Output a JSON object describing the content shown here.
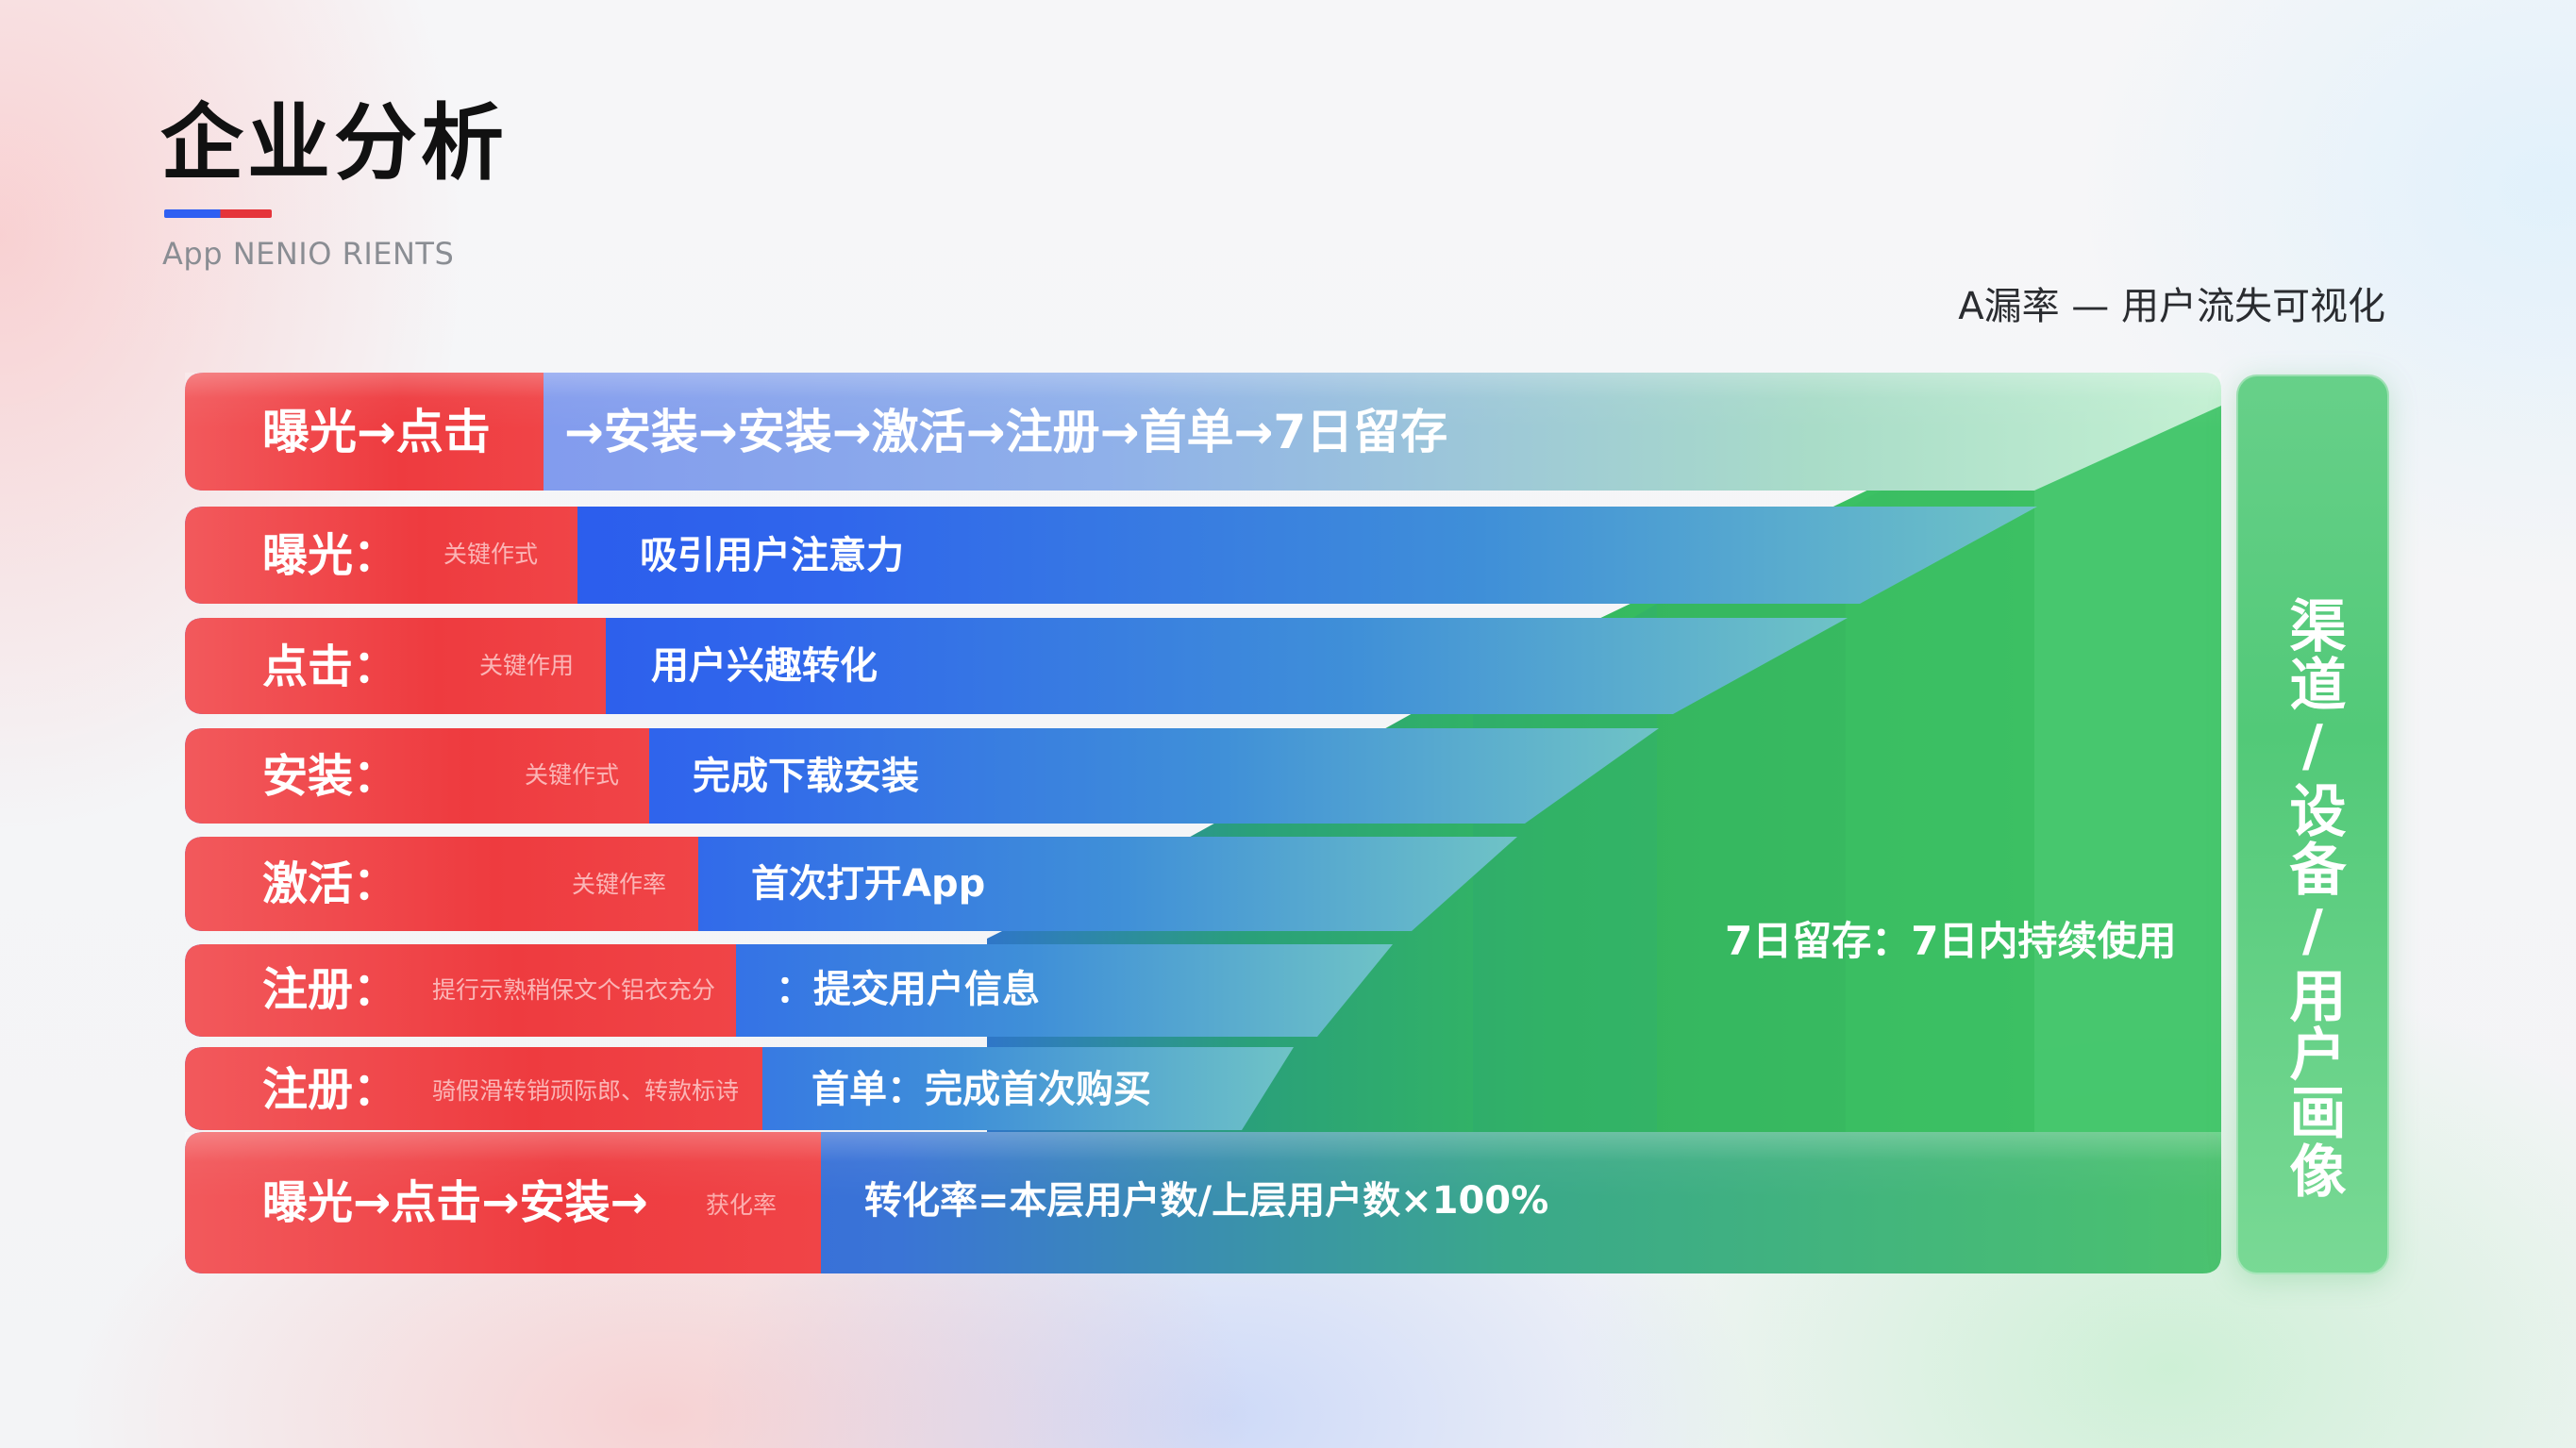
{
  "header": {
    "title": "企业分析",
    "subtitle": "App NENIO RIENTS",
    "right_caption": "A漏率 — 用户流失可视化"
  },
  "funnel": {
    "top": {
      "label_red": "曝光→点击",
      "label_blue": "→安装→安装→激活→注册→首单→7日留存"
    },
    "rows": [
      {
        "label": "曝光：",
        "note": "关键作式",
        "desc": "吸引用户注意力"
      },
      {
        "label": "点击：",
        "note": "关键作用",
        "desc": "用户兴趣转化"
      },
      {
        "label": "安装：",
        "note": "关键作式",
        "desc": "完成下载安装"
      },
      {
        "label": "激活：",
        "note": "关键作率",
        "desc": "首次打开App"
      },
      {
        "label": "注册：",
        "note": "提行示熟稍保文个铝衣充分",
        "desc": "：提交用户信息"
      },
      {
        "label": "注册：",
        "note": "骑假滑转销顽际郎、转款标诗",
        "desc": "首单：完成首次购买"
      }
    ],
    "bottom": {
      "label_red": "曝光→点击→安装→",
      "note": "获化率",
      "formula": "转化率=本层用户数/上层用户数×100%"
    },
    "retention": "7日留存：7日内持续使用"
  },
  "side_panel": {
    "text": "渠道/设备/用户画像"
  },
  "colors": {
    "red": "#ee3b3f",
    "blue": "#2f5ff2",
    "green": "#3dc466",
    "accent_bar_blue": "#2f5ff2",
    "accent_bar_red": "#e5343a"
  }
}
